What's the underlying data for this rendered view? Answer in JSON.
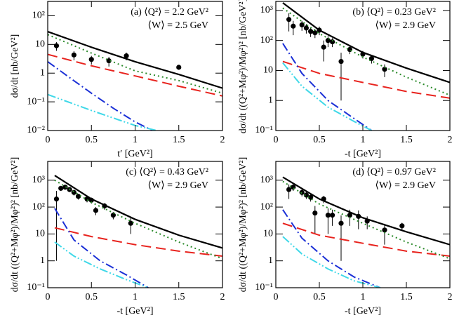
{
  "chart_data": [
    {
      "type": "line",
      "log_y": true,
      "annotations": [
        "(a) ⟨Q²⟩ = 2.2 GeV²",
        "⟨W⟩ = 2.5 GeV"
      ],
      "x_label": "t′ [GeV²]",
      "y_label": "dσ/dt [nb/GeV²]",
      "xlim": [
        0,
        2
      ],
      "xticks": [
        0,
        0.5,
        1,
        1.5,
        2
      ],
      "ylim": [
        0.01,
        316
      ],
      "yticks": [
        {
          "value": 0.01,
          "label": "10⁻²"
        },
        {
          "value": 0.1,
          "label": "10⁻¹"
        },
        {
          "value": 1,
          "label": "1"
        },
        {
          "value": 10,
          "label": "10"
        },
        {
          "value": 100,
          "label": "10²"
        }
      ],
      "series": [
        {
          "style": "points",
          "color": "#000000",
          "x": [
            0.1,
            0.3,
            0.5,
            0.7,
            0.9,
            1.5
          ],
          "values": [
            9,
            4.3,
            3,
            2.7,
            4,
            1.6
          ],
          "errors": [
            3,
            1.5,
            1,
            1,
            1.2,
            0.3
          ]
        },
        {
          "style": "solid",
          "color": "#000000",
          "x": [
            0,
            0.5,
            1,
            1.5,
            2
          ],
          "values": [
            28,
            8,
            2.5,
            0.9,
            0.3
          ]
        },
        {
          "style": "dashed",
          "color": "#e8231e",
          "x": [
            0,
            0.5,
            1,
            1.5,
            2
          ],
          "values": [
            4.5,
            1.8,
            0.8,
            0.35,
            0.16
          ]
        },
        {
          "style": "dotted",
          "color": "#2a8a2a",
          "x": [
            0,
            0.5,
            1,
            1.5,
            2
          ],
          "values": [
            22,
            5,
            1.2,
            0.55,
            0.2
          ]
        },
        {
          "style": "dashdot",
          "color": "#1a2fd6",
          "x": [
            0,
            0.25,
            0.5,
            0.75,
            1,
            1.2
          ],
          "values": [
            2.5,
            0.7,
            0.2,
            0.06,
            0.02,
            0.01
          ]
        },
        {
          "style": "dashdotdot",
          "color": "#3fd8e8",
          "x": [
            0,
            0.5,
            1,
            1.25
          ],
          "values": [
            0.18,
            0.05,
            0.015,
            0.01
          ]
        }
      ]
    },
    {
      "type": "line",
      "log_y": true,
      "annotations": [
        "(b) ⟨Q²⟩ = 0.23 GeV²",
        "⟨W⟩ = 2.9 GeV"
      ],
      "x_label": "-t [GeV²]",
      "y_label": "dσ/dt ((Q²+Mφ²)/Mφ²)² [nb/GeV²]",
      "xlim": [
        0,
        2
      ],
      "xticks": [
        0,
        0.5,
        1,
        1.5,
        2
      ],
      "ylim": [
        0.1,
        2000
      ],
      "yticks": [
        {
          "value": 0.1,
          "label": "10⁻¹"
        },
        {
          "value": 1,
          "label": "1"
        },
        {
          "value": 10,
          "label": "10"
        },
        {
          "value": 100,
          "label": "10²"
        },
        {
          "value": 1000,
          "label": "10³"
        }
      ],
      "series": [
        {
          "style": "points",
          "color": "#000000",
          "x": [
            0.15,
            0.2,
            0.3,
            0.35,
            0.4,
            0.45,
            0.5,
            0.55,
            0.6,
            0.65,
            0.75,
            0.85,
            1.0,
            1.1,
            1.25
          ],
          "values": [
            500,
            300,
            330,
            260,
            200,
            180,
            220,
            60,
            100,
            90,
            20,
            50,
            35,
            25,
            11
          ],
          "errors": [
            300,
            150,
            120,
            90,
            70,
            60,
            70,
            40,
            40,
            30,
            19,
            15,
            10,
            8,
            5
          ]
        },
        {
          "style": "solid",
          "color": "#000000",
          "x": [
            0.08,
            0.5,
            1,
            1.5,
            2
          ],
          "values": [
            1800,
            220,
            40,
            12,
            4
          ]
        },
        {
          "style": "dashed",
          "color": "#e8231e",
          "x": [
            0.08,
            0.5,
            1,
            1.5,
            2
          ],
          "values": [
            20,
            8,
            4,
            2,
            1.2
          ]
        },
        {
          "style": "dotted",
          "color": "#2a8a2a",
          "x": [
            0.08,
            0.5,
            1,
            1.5,
            2
          ],
          "values": [
            1200,
            170,
            28,
            6,
            1.5
          ]
        },
        {
          "style": "dashdot",
          "color": "#1a2fd6",
          "x": [
            0.08,
            0.3,
            0.6,
            0.9,
            1.1
          ],
          "values": [
            80,
            8,
            1,
            0.25,
            0.1
          ]
        },
        {
          "style": "dashdotdot",
          "color": "#3fd8e8",
          "x": [
            0.08,
            0.3,
            0.6,
            0.9,
            1.1
          ],
          "values": [
            18,
            3,
            0.6,
            0.2,
            0.1
          ]
        }
      ]
    },
    {
      "type": "line",
      "log_y": true,
      "annotations": [
        "(c) ⟨Q²⟩ = 0.43 GeV²",
        "⟨W⟩ = 2.9 GeV"
      ],
      "x_label": "-t [GeV²]",
      "y_label": "dσ/dt ((Q²+Mφ²)/Mφ²)² [nb/GeV²]",
      "xlim": [
        0,
        2
      ],
      "xticks": [
        0,
        0.5,
        1,
        1.5,
        2
      ],
      "ylim": [
        0.1,
        5000
      ],
      "yticks": [
        {
          "value": 0.1,
          "label": "10⁻¹"
        },
        {
          "value": 1,
          "label": "1"
        },
        {
          "value": 10,
          "label": "10"
        },
        {
          "value": 100,
          "label": "10²"
        },
        {
          "value": 1000,
          "label": "10³"
        }
      ],
      "series": [
        {
          "style": "points",
          "color": "#000000",
          "x": [
            0.1,
            0.15,
            0.2,
            0.25,
            0.3,
            0.35,
            0.45,
            0.5,
            0.55,
            0.65,
            0.75,
            0.95
          ],
          "values": [
            200,
            500,
            550,
            450,
            350,
            250,
            200,
            180,
            75,
            110,
            50,
            25
          ],
          "errors": [
            199,
            100,
            100,
            90,
            80,
            60,
            50,
            45,
            25,
            30,
            15,
            15
          ]
        },
        {
          "style": "solid",
          "color": "#000000",
          "x": [
            0.08,
            0.5,
            1,
            1.5,
            2
          ],
          "values": [
            1500,
            200,
            35,
            9,
            3
          ]
        },
        {
          "style": "dashed",
          "color": "#e8231e",
          "x": [
            0.08,
            0.5,
            1,
            1.5,
            2
          ],
          "values": [
            17,
            8,
            4,
            2.3,
            1.5
          ]
        },
        {
          "style": "dotted",
          "color": "#2a8a2a",
          "x": [
            0.08,
            0.5,
            1,
            1.5,
            2
          ],
          "values": [
            1000,
            150,
            25,
            5,
            1.2
          ]
        },
        {
          "style": "dashdot",
          "color": "#1a2fd6",
          "x": [
            0.08,
            0.3,
            0.6,
            0.9,
            1.15
          ],
          "values": [
            90,
            6,
            1,
            0.3,
            0.1
          ]
        },
        {
          "style": "dashdotdot",
          "color": "#3fd8e8",
          "x": [
            0.08,
            0.3,
            0.6,
            0.9,
            1.15
          ],
          "values": [
            5,
            1.5,
            0.5,
            0.2,
            0.1
          ]
        }
      ]
    },
    {
      "type": "line",
      "log_y": true,
      "annotations": [
        "(d) ⟨Q²⟩ = 0.97 GeV²",
        "⟨W⟩ = 2.9 GeV"
      ],
      "x_label": "-t [GeV²]",
      "y_label": "dσ/dt ((Q²+Mφ²)/Mφ²)² [nb/GeV²]",
      "xlim": [
        0,
        2
      ],
      "xticks": [
        0,
        0.5,
        1,
        1.5,
        2
      ],
      "ylim": [
        0.1,
        5000
      ],
      "yticks": [
        {
          "value": 0.1,
          "label": "10⁻¹"
        },
        {
          "value": 1,
          "label": "1"
        },
        {
          "value": 10,
          "label": "10"
        },
        {
          "value": 100,
          "label": "10²"
        },
        {
          "value": 1000,
          "label": "10³"
        }
      ],
      "series": [
        {
          "style": "points",
          "color": "#000000",
          "x": [
            0.15,
            0.2,
            0.3,
            0.35,
            0.4,
            0.45,
            0.55,
            0.6,
            0.65,
            0.75,
            0.85,
            0.95,
            1.05,
            1.25,
            1.45
          ],
          "values": [
            450,
            550,
            350,
            280,
            230,
            60,
            200,
            50,
            50,
            25,
            50,
            45,
            30,
            14,
            20
          ],
          "errors": [
            250,
            150,
            100,
            80,
            70,
            50,
            60,
            40,
            30,
            24,
            30,
            30,
            15,
            10,
            6
          ]
        },
        {
          "style": "solid",
          "color": "#000000",
          "x": [
            0.08,
            0.5,
            1,
            1.5,
            2
          ],
          "values": [
            1300,
            200,
            40,
            12,
            4
          ]
        },
        {
          "style": "dashed",
          "color": "#e8231e",
          "x": [
            0.08,
            0.5,
            1,
            1.5,
            2
          ],
          "values": [
            25,
            9,
            4.5,
            2.3,
            1.5
          ]
        },
        {
          "style": "dotted",
          "color": "#2a8a2a",
          "x": [
            0.08,
            0.5,
            1,
            1.5,
            2
          ],
          "values": [
            900,
            130,
            25,
            5,
            1.2
          ]
        },
        {
          "style": "dashdot",
          "color": "#1a2fd6",
          "x": [
            0.08,
            0.3,
            0.6,
            0.9,
            1.2
          ],
          "values": [
            80,
            7,
            1,
            0.25,
            0.1
          ]
        },
        {
          "style": "dashdotdot",
          "color": "#3fd8e8",
          "x": [
            0.08,
            0.3,
            0.6,
            0.9,
            1.2
          ],
          "values": [
            8,
            1.8,
            0.5,
            0.18,
            0.1
          ]
        }
      ]
    }
  ]
}
